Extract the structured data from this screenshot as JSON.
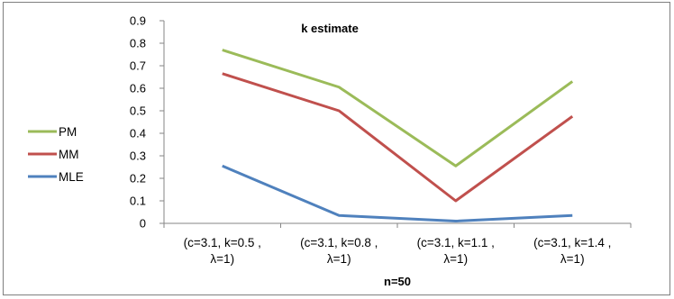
{
  "chart_data": {
    "type": "line",
    "title": "k estimate",
    "xlabel": "n=50",
    "ylabel": "",
    "ylim": [
      0,
      0.9
    ],
    "yticks": [
      "0",
      "0.1",
      "0.2",
      "0.3",
      "0.4",
      "0.5",
      "0.6",
      "0.7",
      "0.8",
      "0.9"
    ],
    "categories": [
      [
        "(c=3.1, k=0.5 ,",
        "λ=1)"
      ],
      [
        "(c=3.1, k=0.8 ,",
        "λ=1)"
      ],
      [
        "(c=3.1, k=1.1 ,",
        "λ=1)"
      ],
      [
        "(c=3.1, k=1.4 ,",
        "λ=1)"
      ]
    ],
    "legend_position": "left",
    "grid": false,
    "series": [
      {
        "name": "PM",
        "color": "#9bbb59",
        "values": [
          0.77,
          0.605,
          0.255,
          0.63
        ]
      },
      {
        "name": "MM",
        "color": "#c0504d",
        "values": [
          0.665,
          0.5,
          0.1,
          0.475
        ]
      },
      {
        "name": "MLE",
        "color": "#4f81bd",
        "values": [
          0.255,
          0.035,
          0.01,
          0.035
        ]
      }
    ]
  }
}
